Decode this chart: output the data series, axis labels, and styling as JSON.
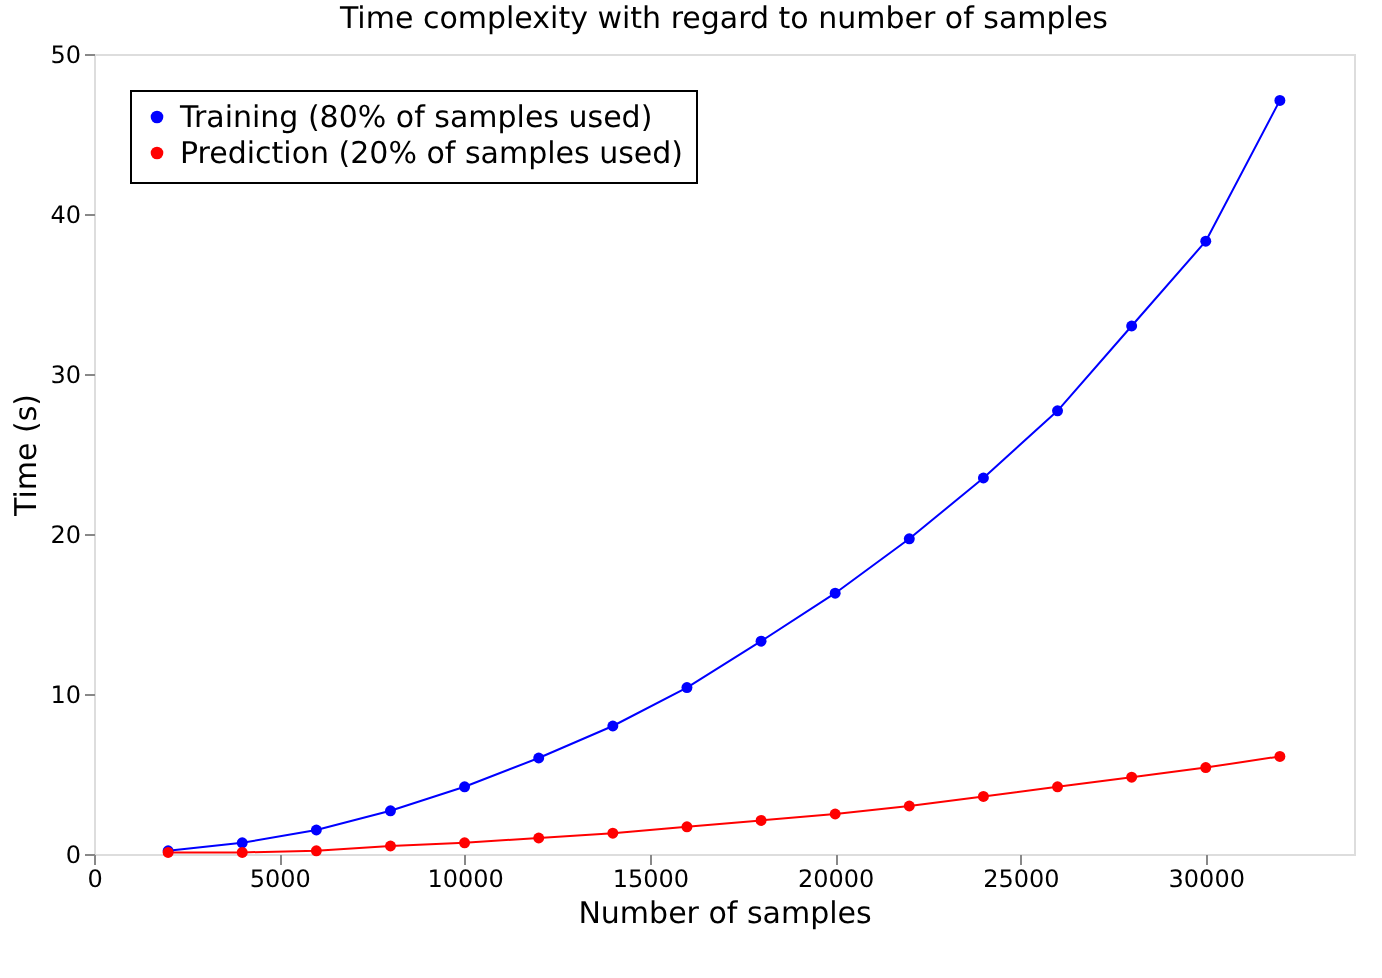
{
  "chart_data": {
    "type": "line",
    "title": "Time complexity with regard to number of samples",
    "xlabel": "Number of samples",
    "ylabel": "Time (s)",
    "x": [
      2000,
      4000,
      6000,
      8000,
      10000,
      12000,
      14000,
      16000,
      18000,
      20000,
      22000,
      24000,
      26000,
      28000,
      30000,
      32000
    ],
    "series": [
      {
        "name": "Training (80% of samples used)",
        "color": "#0000ff",
        "values": [
          0.2,
          0.7,
          1.5,
          2.7,
          4.2,
          6.0,
          8.0,
          10.4,
          13.3,
          16.3,
          19.7,
          23.5,
          27.7,
          33.0,
          38.3,
          47.1
        ]
      },
      {
        "name": "Prediction (20% of samples used)",
        "color": "#ff0000",
        "values": [
          0.1,
          0.1,
          0.2,
          0.5,
          0.7,
          1.0,
          1.3,
          1.7,
          2.1,
          2.5,
          3.0,
          3.6,
          4.2,
          4.8,
          5.4,
          6.1
        ]
      }
    ],
    "xlim": [
      0,
      34000
    ],
    "xticks": [
      0,
      5000,
      10000,
      15000,
      20000,
      25000,
      30000
    ],
    "ylim": [
      0,
      50
    ],
    "yticks": [
      0,
      10,
      20,
      30,
      40,
      50
    ],
    "grid": false,
    "legend": "top left",
    "marker": "circle",
    "line_style": "solid"
  }
}
